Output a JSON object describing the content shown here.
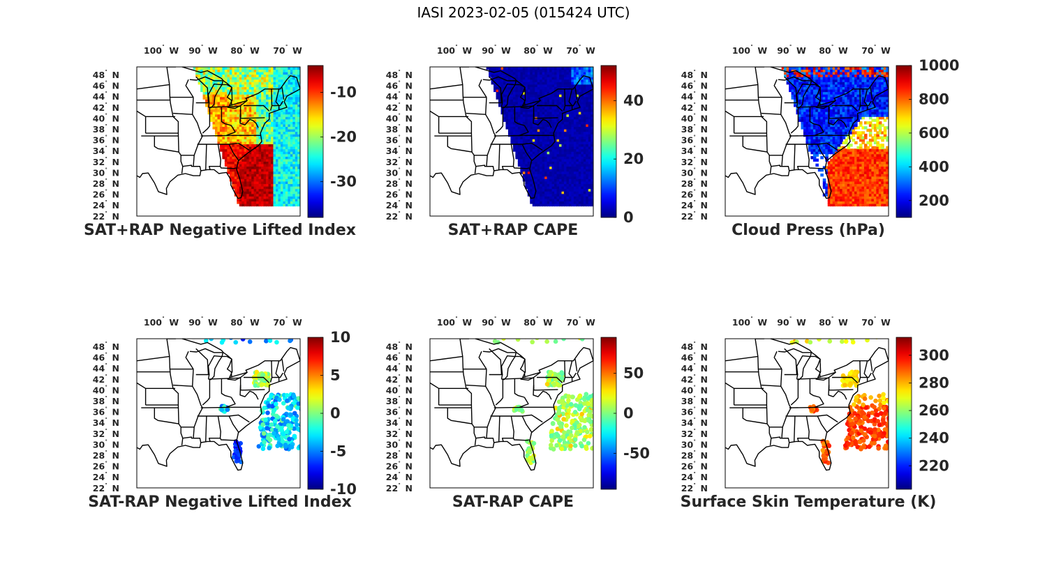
{
  "figure": {
    "title": "IASI 2023-02-05 (015424 UTC)"
  },
  "chart_data": [
    {
      "type": "heatmap",
      "title": "SAT+RAP Negative Lifted Index",
      "lon_ticks": [
        "100",
        "90",
        "80",
        "70"
      ],
      "lat_ticks": [
        "48",
        "46",
        "44",
        "42",
        "40",
        "38",
        "36",
        "34",
        "32",
        "30",
        "28",
        "26",
        "24",
        "22"
      ],
      "colorbar": {
        "min": -38,
        "max": -4,
        "ticks": [
          -10,
          -20,
          -30
        ]
      },
      "field": "swath-gradient"
    },
    {
      "type": "heatmap",
      "title": "SAT+RAP CAPE",
      "lon_ticks": [
        "100",
        "90",
        "80",
        "70"
      ],
      "lat_ticks": [
        "48",
        "46",
        "44",
        "42",
        "40",
        "38",
        "36",
        "34",
        "32",
        "30",
        "28",
        "26",
        "24",
        "22"
      ],
      "colorbar": {
        "min": 0,
        "max": 52,
        "ticks": [
          40,
          20,
          0
        ]
      },
      "field": "uniform-low"
    },
    {
      "type": "heatmap",
      "title": "Cloud Press (hPa)",
      "lon_ticks": [
        "100",
        "90",
        "80",
        "70"
      ],
      "lat_ticks": [
        "48",
        "46",
        "44",
        "42",
        "40",
        "38",
        "36",
        "34",
        "32",
        "30",
        "28",
        "26",
        "24",
        "22"
      ],
      "colorbar": {
        "min": 100,
        "max": 1000,
        "ticks": [
          1000,
          800,
          600,
          400,
          200
        ]
      },
      "field": "cloud-pressure"
    },
    {
      "type": "heatmap",
      "title": "SAT-RAP Negative Lifted Index",
      "lon_ticks": [
        "100",
        "90",
        "80",
        "70"
      ],
      "lat_ticks": [
        "48",
        "46",
        "44",
        "42",
        "40",
        "38",
        "36",
        "34",
        "32",
        "30",
        "28",
        "26",
        "24",
        "22"
      ],
      "colorbar": {
        "min": -10,
        "max": 10,
        "ticks": [
          10,
          5,
          0,
          -5,
          -10
        ]
      },
      "field": "sparse-diff-li"
    },
    {
      "type": "heatmap",
      "title": "SAT-RAP CAPE",
      "lon_ticks": [
        "100",
        "90",
        "80",
        "70"
      ],
      "lat_ticks": [
        "48",
        "46",
        "44",
        "42",
        "40",
        "38",
        "36",
        "34",
        "32",
        "30",
        "28",
        "26",
        "24",
        "22"
      ],
      "colorbar": {
        "min": -95,
        "max": 95,
        "ticks": [
          50,
          0,
          -50
        ]
      },
      "field": "sparse-diff-cape"
    },
    {
      "type": "heatmap",
      "title": "Surface Skin Temperature (K)",
      "lon_ticks": [
        "100",
        "90",
        "80",
        "70"
      ],
      "lat_ticks": [
        "48",
        "46",
        "44",
        "42",
        "40",
        "38",
        "36",
        "34",
        "32",
        "30",
        "28",
        "26",
        "24",
        "22"
      ],
      "colorbar": {
        "min": 203,
        "max": 313,
        "ticks": [
          300,
          280,
          260,
          240,
          220
        ]
      },
      "field": "sparse-skin-temp"
    }
  ],
  "colors": {
    "map_outline": "#000000",
    "axis_text": "#262626"
  }
}
